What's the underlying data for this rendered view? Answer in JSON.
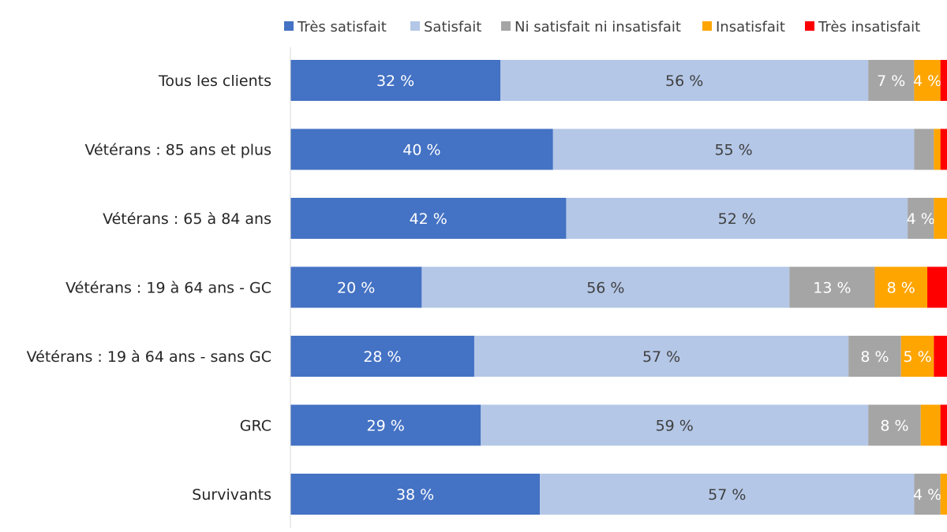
{
  "chart_data": {
    "type": "bar",
    "orientation": "horizontal",
    "stacked": true,
    "xlim": [
      0,
      100
    ],
    "grid": false,
    "legend_placement": "top",
    "categories": [
      "Tous les clients",
      "Vétérans : 85 ans et plus",
      "Vétérans : 65 à 84 ans",
      "Vétérans : 19 à 64 ans - GC",
      "Vétérans : 19 à 64 ans - sans GC",
      "GRC",
      "Survivants"
    ],
    "series": [
      {
        "name": "Très satisfait",
        "color": "#4472C4",
        "label_color": "#ffffff",
        "values": [
          32,
          40,
          42,
          20,
          28,
          29,
          38
        ],
        "labels": [
          "32 %",
          "40 %",
          "42 %",
          "20 %",
          "28 %",
          "29 %",
          "38 %"
        ]
      },
      {
        "name": "Satisfait",
        "color": "#B4C7E7",
        "label_color": "#404040",
        "values": [
          56,
          55,
          52,
          56,
          57,
          59,
          57
        ],
        "labels": [
          "56 %",
          "55 %",
          "52 %",
          "56 %",
          "57 %",
          "59 %",
          "57 %"
        ]
      },
      {
        "name": "Ni satisfait ni insatisfait",
        "color": "#A5A5A5",
        "label_color": "#ffffff",
        "values": [
          7,
          3,
          4,
          13,
          8,
          8,
          4
        ],
        "labels": [
          "7 %",
          "",
          "4 %",
          "13 %",
          "8 %",
          "8 %",
          "4 %"
        ]
      },
      {
        "name": "Insatisfait",
        "color": "#FFA500",
        "label_color": "#ffffff",
        "values": [
          4,
          1,
          2,
          8,
          5,
          3,
          1
        ],
        "labels": [
          "4 %",
          "",
          "",
          "8 %",
          "5 %",
          "",
          ""
        ]
      },
      {
        "name": "Très insatisfait",
        "color": "#FF0000",
        "label_color": "#ffffff",
        "values": [
          2,
          1,
          0.4,
          3.5,
          2.5,
          1.7,
          1.1
        ],
        "labels": [
          "",
          "",
          "",
          "",
          "",
          "",
          ""
        ]
      }
    ]
  }
}
